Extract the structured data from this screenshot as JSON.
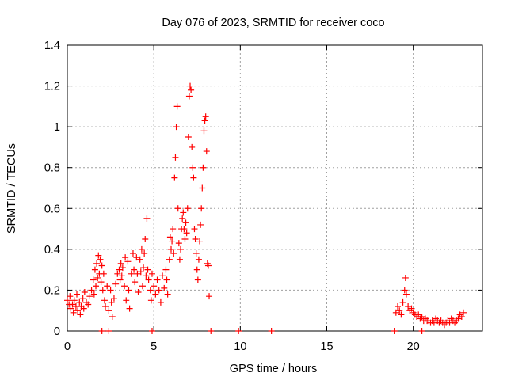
{
  "chart_data": {
    "type": "scatter",
    "title": "Day 076 of 2023, SRMTID for receiver coco",
    "xlabel": "GPS time / hours",
    "ylabel": "SRMTID / TECUs",
    "xlim": [
      0,
      24
    ],
    "ylim": [
      0,
      1.4
    ],
    "x_ticks": [
      0,
      5,
      10,
      15,
      20
    ],
    "y_ticks": [
      0,
      0.2,
      0.4,
      0.6,
      0.8,
      1,
      1.2,
      1.4
    ],
    "grid": true,
    "marker": "+",
    "series": [
      {
        "name": "SRMTID",
        "color": "#ff0000",
        "points": [
          [
            0.0,
            0.15
          ],
          [
            0.1,
            0.13
          ],
          [
            0.15,
            0.17
          ],
          [
            0.2,
            0.11
          ],
          [
            0.3,
            0.13
          ],
          [
            0.35,
            0.09
          ],
          [
            0.4,
            0.15
          ],
          [
            0.5,
            0.12
          ],
          [
            0.55,
            0.18
          ],
          [
            0.6,
            0.1
          ],
          [
            0.7,
            0.14
          ],
          [
            0.75,
            0.08
          ],
          [
            0.8,
            0.12
          ],
          [
            0.9,
            0.16
          ],
          [
            0.95,
            0.11
          ],
          [
            1.0,
            0.19
          ],
          [
            1.1,
            0.14
          ],
          [
            1.2,
            0.13
          ],
          [
            1.3,
            0.17
          ],
          [
            1.4,
            0.2
          ],
          [
            1.5,
            0.25
          ],
          [
            1.55,
            0.18
          ],
          [
            1.6,
            0.3
          ],
          [
            1.65,
            0.22
          ],
          [
            1.7,
            0.33
          ],
          [
            1.75,
            0.26
          ],
          [
            1.8,
            0.37
          ],
          [
            1.85,
            0.28
          ],
          [
            1.9,
            0.35
          ],
          [
            1.95,
            0.24
          ],
          [
            2.0,
            0.32
          ],
          [
            2.05,
            0.2
          ],
          [
            2.1,
            0.28
          ],
          [
            2.15,
            0.15
          ],
          [
            2.2,
            0.12
          ],
          [
            2.3,
            0.22
          ],
          [
            2.4,
            0.1
          ],
          [
            2.5,
            0.2
          ],
          [
            2.55,
            0.14
          ],
          [
            2.6,
            0.07
          ],
          [
            2.7,
            0.16
          ],
          [
            2.8,
            0.23
          ],
          [
            2.9,
            0.28
          ],
          [
            3.0,
            0.3
          ],
          [
            3.05,
            0.25
          ],
          [
            3.1,
            0.33
          ],
          [
            3.15,
            0.27
          ],
          [
            3.2,
            0.31
          ],
          [
            3.3,
            0.22
          ],
          [
            3.35,
            0.36
          ],
          [
            3.4,
            0.15
          ],
          [
            3.5,
            0.34
          ],
          [
            3.55,
            0.2
          ],
          [
            3.6,
            0.11
          ],
          [
            3.7,
            0.28
          ],
          [
            3.8,
            0.38
          ],
          [
            3.85,
            0.3
          ],
          [
            3.9,
            0.24
          ],
          [
            4.0,
            0.36
          ],
          [
            4.05,
            0.28
          ],
          [
            4.1,
            0.19
          ],
          [
            4.2,
            0.35
          ],
          [
            4.25,
            0.29
          ],
          [
            4.3,
            0.4
          ],
          [
            4.35,
            0.22
          ],
          [
            4.4,
            0.31
          ],
          [
            4.45,
            0.38
          ],
          [
            4.5,
            0.45
          ],
          [
            4.55,
            0.27
          ],
          [
            4.6,
            0.55
          ],
          [
            4.65,
            0.3
          ],
          [
            4.7,
            0.25
          ],
          [
            4.8,
            0.2
          ],
          [
            4.85,
            0.15
          ],
          [
            4.9,
            0.28
          ],
          [
            5.0,
            0.22
          ],
          [
            5.1,
            0.18
          ],
          [
            5.2,
            0.25
          ],
          [
            5.3,
            0.2
          ],
          [
            5.4,
            0.14
          ],
          [
            5.5,
            0.27
          ],
          [
            5.6,
            0.21
          ],
          [
            5.7,
            0.3
          ],
          [
            5.75,
            0.25
          ],
          [
            5.8,
            0.18
          ],
          [
            5.9,
            0.35
          ],
          [
            5.95,
            0.46
          ],
          [
            6.0,
            0.4
          ],
          [
            6.05,
            0.44
          ],
          [
            6.1,
            0.5
          ],
          [
            6.15,
            0.38
          ],
          [
            6.2,
            0.75
          ],
          [
            6.25,
            0.85
          ],
          [
            6.3,
            1.0
          ],
          [
            6.35,
            1.1
          ],
          [
            6.4,
            0.6
          ],
          [
            6.45,
            0.43
          ],
          [
            6.5,
            0.35
          ],
          [
            6.55,
            0.4
          ],
          [
            6.6,
            0.5
          ],
          [
            6.65,
            0.55
          ],
          [
            6.7,
            0.58
          ],
          [
            6.75,
            0.5
          ],
          [
            6.8,
            0.45
          ],
          [
            6.85,
            0.53
          ],
          [
            6.9,
            0.48
          ],
          [
            6.95,
            0.6
          ],
          [
            7.0,
            0.95
          ],
          [
            7.05,
            1.15
          ],
          [
            7.1,
            1.2
          ],
          [
            7.15,
            1.18
          ],
          [
            7.2,
            0.9
          ],
          [
            7.25,
            0.8
          ],
          [
            7.3,
            0.75
          ],
          [
            7.35,
            0.5
          ],
          [
            7.4,
            0.45
          ],
          [
            7.45,
            0.38
          ],
          [
            7.5,
            0.3
          ],
          [
            7.55,
            0.25
          ],
          [
            7.6,
            0.35
          ],
          [
            7.65,
            0.44
          ],
          [
            7.7,
            0.52
          ],
          [
            7.75,
            0.6
          ],
          [
            7.8,
            0.7
          ],
          [
            7.85,
            0.8
          ],
          [
            7.9,
            0.98
          ],
          [
            7.95,
            1.03
          ],
          [
            8.0,
            1.05
          ],
          [
            8.05,
            0.88
          ],
          [
            8.1,
            0.33
          ],
          [
            8.15,
            0.32
          ],
          [
            8.2,
            0.17
          ],
          [
            19.0,
            0.09
          ],
          [
            19.1,
            0.12
          ],
          [
            19.2,
            0.1
          ],
          [
            19.3,
            0.08
          ],
          [
            19.4,
            0.14
          ],
          [
            19.5,
            0.2
          ],
          [
            19.55,
            0.26
          ],
          [
            19.6,
            0.18
          ],
          [
            19.7,
            0.12
          ],
          [
            19.8,
            0.1
          ],
          [
            19.9,
            0.11
          ],
          [
            20.0,
            0.09
          ],
          [
            20.1,
            0.08
          ],
          [
            20.2,
            0.07
          ],
          [
            20.3,
            0.08
          ],
          [
            20.4,
            0.06
          ],
          [
            20.5,
            0.07
          ],
          [
            20.6,
            0.05
          ],
          [
            20.7,
            0.06
          ],
          [
            20.8,
            0.05
          ],
          [
            20.9,
            0.05
          ],
          [
            21.0,
            0.04
          ],
          [
            21.1,
            0.05
          ],
          [
            21.2,
            0.04
          ],
          [
            21.3,
            0.06
          ],
          [
            21.4,
            0.05
          ],
          [
            21.5,
            0.04
          ],
          [
            21.6,
            0.05
          ],
          [
            21.7,
            0.04
          ],
          [
            21.8,
            0.03
          ],
          [
            21.9,
            0.04
          ],
          [
            22.0,
            0.05
          ],
          [
            22.1,
            0.04
          ],
          [
            22.2,
            0.06
          ],
          [
            22.3,
            0.05
          ],
          [
            22.4,
            0.04
          ],
          [
            22.5,
            0.05
          ],
          [
            22.6,
            0.06
          ],
          [
            22.7,
            0.08
          ],
          [
            22.8,
            0.07
          ],
          [
            22.9,
            0.09
          ],
          [
            2.0,
            0.0
          ],
          [
            2.4,
            0.0
          ],
          [
            4.9,
            0.0
          ],
          [
            8.3,
            0.0
          ],
          [
            9.9,
            0.0
          ],
          [
            11.8,
            0.0
          ],
          [
            18.9,
            0.0
          ],
          [
            20.5,
            0.0
          ]
        ]
      }
    ]
  }
}
